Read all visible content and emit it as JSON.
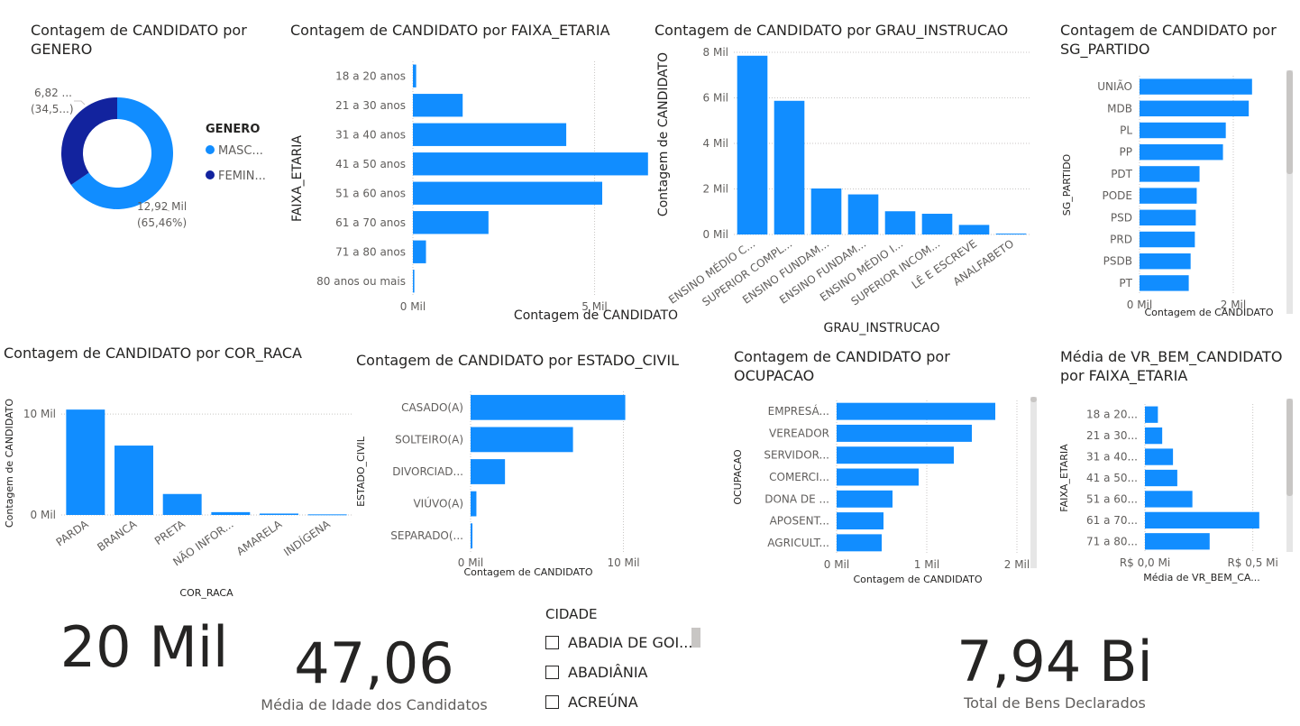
{
  "colors": {
    "primary": "#118dff",
    "dark": "#12239e",
    "text": "#252423",
    "grid": "#c8c6c4",
    "label": "#605e5c"
  },
  "chart_data": [
    {
      "id": "genero",
      "type": "pie",
      "title": "Contagem de CANDIDATO por GENERO",
      "legend_title": "GENERO",
      "categories": [
        "MASCULINO",
        "FEMININO"
      ],
      "legend_labels": [
        "MASC...",
        "FEMIN..."
      ],
      "values": [
        12920,
        6820
      ],
      "data_labels": [
        [
          "12,92 Mil",
          "(65,46%)"
        ],
        [
          "6,82 ...",
          "(34,5...)"
        ]
      ],
      "colors": [
        "#118dff",
        "#12239e"
      ]
    },
    {
      "id": "faixa",
      "type": "bar",
      "orientation": "horizontal",
      "title": "Contagem de CANDIDATO por FAIXA_ETARIA",
      "xlabel": "Contagem de CANDIDATO",
      "ylabel": "FAIXA_ETARIA",
      "categories": [
        "18 a 20 anos",
        "21 a 30 anos",
        "31 a 40 anos",
        "41 a 50 anos",
        "51 a 60 anos",
        "61 a 70 anos",
        "71 a 80 anos",
        "80 anos ou mais"
      ],
      "values": [
        90,
        1370,
        4220,
        6470,
        5210,
        2080,
        360,
        40
      ],
      "xlim": [
        0,
        6500
      ],
      "ticks": [
        0,
        5000
      ],
      "tick_labels": [
        "0 Mil",
        "5 Mil"
      ]
    },
    {
      "id": "grau",
      "type": "bar",
      "orientation": "vertical",
      "title": "Contagem de CANDIDATO por GRAU_INSTRUCAO",
      "xlabel": "GRAU_INSTRUCAO",
      "ylabel": "Contagem de CANDIDATO",
      "categories": [
        "ENSINO MÉDIO C...",
        "SUPERIOR COMPL...",
        "ENSINO FUNDAM...",
        "ENSINO FUNDAM...",
        "ENSINO MÉDIO I...",
        "SUPERIOR INCOM...",
        "LÊ E ESCREVE",
        "ANALFABETO"
      ],
      "values": [
        7850,
        5870,
        2020,
        1760,
        1020,
        910,
        420,
        40
      ],
      "ylim": [
        0,
        8000
      ],
      "ticks": [
        0,
        2000,
        4000,
        6000,
        8000
      ],
      "tick_labels": [
        "0 Mil",
        "2 Mil",
        "4 Mil",
        "6 Mil",
        "8 Mil"
      ]
    },
    {
      "id": "partido",
      "type": "bar",
      "orientation": "horizontal",
      "title": "Contagem de CANDIDATO por SG_PARTIDO",
      "xlabel": "Contagem de CANDIDATO",
      "ylabel": "SG_PARTIDO",
      "categories": [
        "UNIÃO",
        "MDB",
        "PL",
        "PP",
        "PDT",
        "PODE",
        "PSD",
        "PRD",
        "PSDB",
        "PT"
      ],
      "values": [
        2400,
        2330,
        1840,
        1780,
        1280,
        1220,
        1200,
        1180,
        1090,
        1050
      ],
      "xlim": [
        0,
        2500
      ],
      "ticks": [
        0,
        2000
      ],
      "tick_labels": [
        "0 Mil",
        "2 Mil"
      ]
    },
    {
      "id": "cor",
      "type": "bar",
      "orientation": "vertical",
      "title": "Contagem de CANDIDATO por COR_RACA",
      "xlabel": "COR_RACA",
      "ylabel": "Contagem de CANDIDATO",
      "categories": [
        "PARDA",
        "BRANCA",
        "PRETA",
        "NÃO INFOR...",
        "AMARELA",
        "INDÍGENA"
      ],
      "values": [
        10450,
        6880,
        2080,
        280,
        140,
        60
      ],
      "ylim": [
        0,
        11000
      ],
      "ticks": [
        0,
        10000
      ],
      "tick_labels": [
        "0 Mil",
        "10 Mil"
      ]
    },
    {
      "id": "estado",
      "type": "bar",
      "orientation": "horizontal",
      "title": "Contagem de CANDIDATO por ESTADO_CIVIL",
      "xlabel": "Contagem de CANDIDATO",
      "ylabel": "ESTADO_CIVIL",
      "categories": [
        "CASADO(A)",
        "SOLTEIRO(A)",
        "DIVORCIAD...",
        "VIÚVO(A)",
        "SEPARADO(..."
      ],
      "values": [
        10120,
        6700,
        2250,
        380,
        120
      ],
      "xlim": [
        0,
        10500
      ],
      "ticks": [
        0,
        10000
      ],
      "tick_labels": [
        "0 Mil",
        "10 Mil"
      ]
    },
    {
      "id": "ocupacao",
      "type": "bar",
      "orientation": "horizontal",
      "title": "Contagem de CANDIDATO por OCUPACAO",
      "xlabel": "Contagem de CANDIDATO",
      "ylabel": "OCUPACAO",
      "categories": [
        "EMPRESÁ...",
        "VEREADOR",
        "SERVIDOR...",
        "COMERCI...",
        "DONA DE ...",
        "APOSENT...",
        "AGRICULT..."
      ],
      "values": [
        1760,
        1500,
        1300,
        910,
        620,
        520,
        500
      ],
      "xlim": [
        0,
        2000
      ],
      "ticks": [
        0,
        1000,
        2000
      ],
      "tick_labels": [
        "0 Mil",
        "1 Mil",
        "2 Mil"
      ]
    },
    {
      "id": "bens",
      "type": "bar",
      "orientation": "horizontal",
      "title": "Média de VR_BEM_CANDIDATO por FAIXA_ETARIA",
      "xlabel": "Média de VR_BEM_CA...",
      "ylabel": "FAIXA_ETARIA",
      "categories": [
        "18 a 20...",
        "21 a 30...",
        "31 a 40...",
        "41 a 50...",
        "51 a 60...",
        "61 a 70...",
        "71 a 80..."
      ],
      "values": [
        60000,
        80000,
        130000,
        150000,
        220000,
        530000,
        300000
      ],
      "xlim": [
        0,
        560000
      ],
      "ticks": [
        0,
        500000
      ],
      "tick_labels": [
        "R$ 0,0 Mi",
        "R$ 0,5 Mi"
      ]
    }
  ],
  "kpis": {
    "total": {
      "value": "20 Mil"
    },
    "idade": {
      "value": "47,06",
      "label": "Média de Idade dos Candidatos"
    },
    "bens": {
      "value": "7,94 Bi",
      "label": "Total de Bens Declarados"
    }
  },
  "slicer": {
    "title": "CIDADE",
    "items": [
      "ABADIA DE GOI...",
      "ABADIÂNIA",
      "ACREÚNA"
    ]
  }
}
